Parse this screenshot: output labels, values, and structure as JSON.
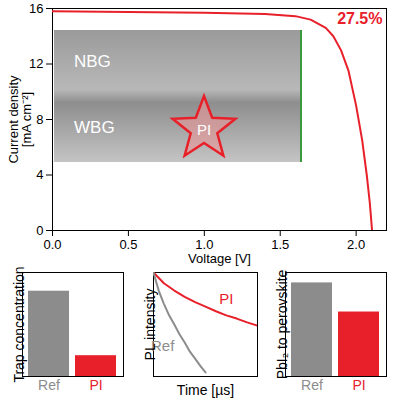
{
  "chart_data": [
    {
      "type": "line",
      "x_label": "Voltage [V]",
      "y_label": "Current density [mA cm⁻²]",
      "xlim": [
        0,
        2.2
      ],
      "xticks": [
        {
          "value": 0,
          "label": "0.0"
        },
        0.5,
        {
          "value": 1,
          "label": "1.0"
        },
        1.5,
        {
          "value": 2,
          "label": "2.0"
        }
      ],
      "ylim": [
        0,
        16
      ],
      "yticks": [
        0,
        4,
        8,
        12,
        16
      ],
      "color": "#e8202a",
      "x": [
        0,
        0.5,
        1.0,
        1.4,
        1.6,
        1.7,
        1.8,
        1.85,
        1.9,
        1.95,
        2.0,
        2.04,
        2.07,
        2.09,
        2.105
      ],
      "values": [
        15.8,
        15.75,
        15.7,
        15.6,
        15.45,
        15.2,
        14.6,
        14.0,
        13.0,
        11.5,
        9.0,
        6.5,
        4.0,
        2.0,
        0
      ],
      "annotations": [
        {
          "text": "27.5%"
        },
        {
          "text": "NBG"
        },
        {
          "text": "WBG"
        },
        {
          "text": "PI"
        }
      ]
    },
    {
      "type": "bar",
      "y_label": "Trap concentration",
      "categories": [
        "Ref",
        "PI"
      ],
      "values": [
        0.82,
        0.2
      ],
      "colors": [
        "#8c8c8c",
        "#e8202a"
      ],
      "ylim": [
        0,
        1
      ],
      "tick_labels": "x"
    },
    {
      "type": "line",
      "log": "y",
      "x_label": "Time [µs]",
      "y_label": "PL intensity",
      "tick_labels": false,
      "xlim": [
        0,
        1
      ],
      "ylim": [
        0.01,
        1
      ],
      "series": [
        {
          "name": "PI",
          "color": "#e8202a",
          "x": [
            0,
            0.1,
            0.2,
            0.3,
            0.4,
            0.5,
            0.6,
            0.7,
            0.8,
            0.9,
            1.0
          ],
          "values": [
            1,
            0.62,
            0.45,
            0.34,
            0.27,
            0.22,
            0.18,
            0.15,
            0.13,
            0.11,
            0.095
          ]
        },
        {
          "name": "Ref",
          "color": "#8c8c8c",
          "x": [
            0,
            0.05,
            0.1,
            0.15,
            0.2,
            0.25,
            0.3,
            0.35,
            0.4,
            0.45,
            0.5
          ],
          "values": [
            1,
            0.45,
            0.25,
            0.15,
            0.1,
            0.065,
            0.045,
            0.03,
            0.022,
            0.016,
            0.012
          ]
        }
      ]
    },
    {
      "type": "bar",
      "y_label": "PbI₂ to perovskite",
      "categories": [
        "Ref",
        "PI"
      ],
      "values": [
        0.9,
        0.62
      ],
      "colors": [
        "#8c8c8c",
        "#e8202a"
      ],
      "ylim": [
        0,
        1
      ],
      "tick_labels": "x"
    }
  ]
}
